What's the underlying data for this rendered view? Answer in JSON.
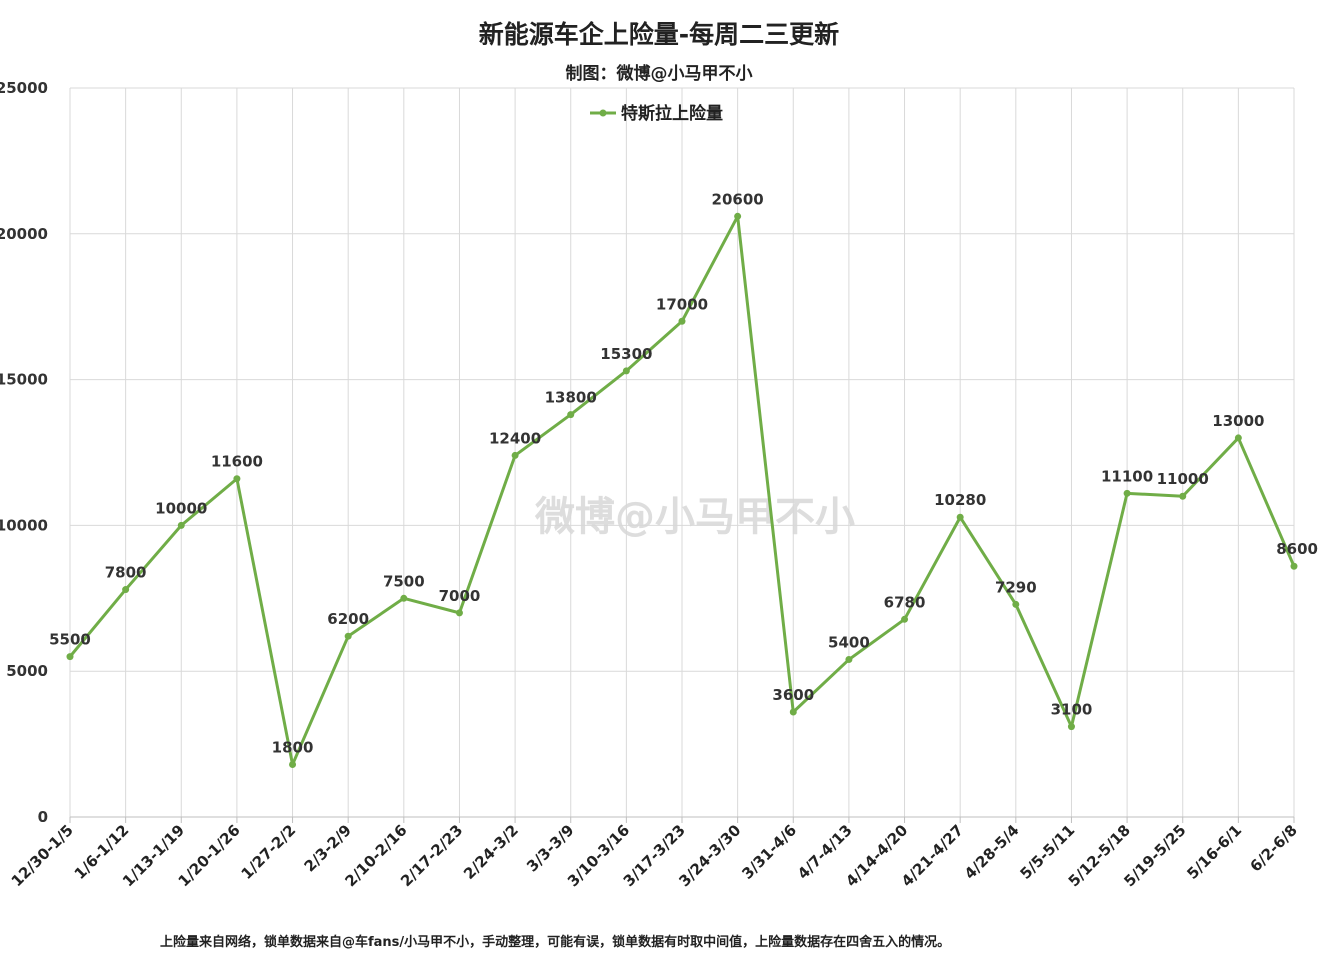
{
  "chart_data": {
    "type": "line",
    "title": "新能源车企上险量-每周二三更新",
    "subtitle": "制图：微博@小马甲不小",
    "categories": [
      "12/30-1/5",
      "1/6-1/12",
      "1/13-1/19",
      "1/20-1/26",
      "1/27-2/2",
      "2/3-2/9",
      "2/10-2/16",
      "2/17-2/23",
      "2/24-3/2",
      "3/3-3/9",
      "3/10-3/16",
      "3/17-3/23",
      "3/24-3/30",
      "3/31-4/6",
      "4/7-4/13",
      "4/14-4/20",
      "4/21-4/27",
      "4/28-5/4",
      "5/5-5/11",
      "5/12-5/18",
      "5/19-5/25",
      "5/16-6/1",
      "6/2-6/8"
    ],
    "series": [
      {
        "name": "特斯拉上险量",
        "color": "#70ad47",
        "values": [
          5500,
          7800,
          10000,
          11600,
          1800,
          6200,
          7500,
          7000,
          12400,
          13800,
          15300,
          17000,
          20600,
          3600,
          5400,
          6780,
          10280,
          7290,
          3100,
          11100,
          11000,
          13000,
          8600
        ]
      }
    ],
    "ylim": [
      0,
      25000
    ],
    "yticks": [
      0,
      5000,
      10000,
      15000,
      20000,
      25000
    ],
    "grid": true,
    "legend_position": "top-center",
    "xlabel": "",
    "ylabel": "",
    "footnote": "上险量来自网络，锁单数据来自@车fans/小马甲不小，手动整理，可能有误，锁单数据有时取中间值，上险量数据存在四舍五入的情况。",
    "watermark": "微博@小马甲不小"
  }
}
